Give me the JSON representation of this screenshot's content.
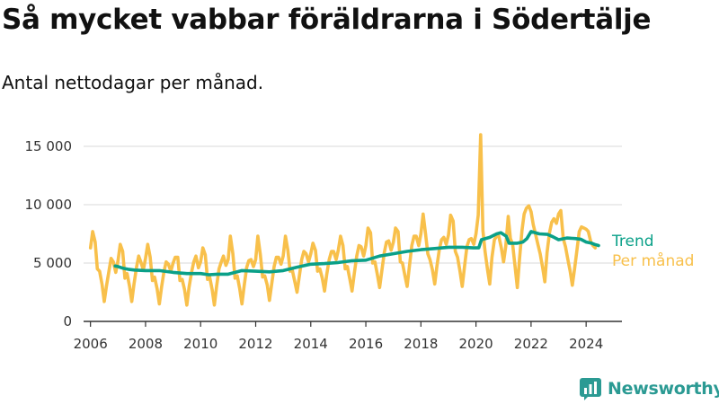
{
  "title": "Så mycket vabbar föräldrarna i Södertälje",
  "subtitle": "Antal nettodagar per månad.",
  "brand": "Newsworthy",
  "colors": {
    "trend": "#0aa088",
    "monthly": "#f8c04b",
    "brand": "#2b9a93",
    "grid": "#d9d9d9",
    "axis": "#333333"
  },
  "chart_data": {
    "type": "line",
    "x_axis_ticks": [
      "2006",
      "2008",
      "2010",
      "2012",
      "2014",
      "2016",
      "2018",
      "2020",
      "2022",
      "2024"
    ],
    "y_axis_ticks": [
      "0",
      "5 000",
      "10 000",
      "15 000"
    ],
    "xlim": [
      2005.75,
      2025.3
    ],
    "ylim": [
      0,
      16000
    ],
    "grid": "horizontal",
    "legend_placement": "right, inline at line ends",
    "series": [
      {
        "name": "Per månad",
        "points": [
          [
            2006.0,
            6300
          ],
          [
            2006.08,
            7700
          ],
          [
            2006.17,
            6800
          ],
          [
            2006.25,
            4500
          ],
          [
            2006.33,
            4300
          ],
          [
            2006.42,
            3200
          ],
          [
            2006.5,
            1700
          ],
          [
            2006.58,
            3000
          ],
          [
            2006.67,
            4300
          ],
          [
            2006.75,
            5400
          ],
          [
            2006.83,
            5100
          ],
          [
            2006.92,
            4200
          ],
          [
            2007.0,
            5200
          ],
          [
            2007.08,
            6600
          ],
          [
            2007.17,
            6000
          ],
          [
            2007.25,
            3700
          ],
          [
            2007.33,
            4100
          ],
          [
            2007.42,
            3000
          ],
          [
            2007.5,
            1700
          ],
          [
            2007.58,
            3200
          ],
          [
            2007.67,
            4600
          ],
          [
            2007.75,
            5600
          ],
          [
            2007.83,
            5100
          ],
          [
            2007.92,
            4400
          ],
          [
            2008.0,
            5400
          ],
          [
            2008.08,
            6600
          ],
          [
            2008.17,
            5500
          ],
          [
            2008.25,
            3500
          ],
          [
            2008.33,
            3800
          ],
          [
            2008.42,
            2800
          ],
          [
            2008.5,
            1500
          ],
          [
            2008.58,
            2900
          ],
          [
            2008.67,
            4300
          ],
          [
            2008.75,
            5100
          ],
          [
            2008.83,
            4900
          ],
          [
            2008.92,
            4300
          ],
          [
            2009.0,
            5000
          ],
          [
            2009.08,
            5500
          ],
          [
            2009.17,
            5500
          ],
          [
            2009.25,
            3500
          ],
          [
            2009.33,
            3600
          ],
          [
            2009.42,
            2700
          ],
          [
            2009.5,
            1400
          ],
          [
            2009.58,
            2900
          ],
          [
            2009.67,
            4200
          ],
          [
            2009.75,
            5100
          ],
          [
            2009.83,
            5600
          ],
          [
            2009.92,
            4600
          ],
          [
            2010.0,
            5100
          ],
          [
            2010.08,
            6300
          ],
          [
            2010.17,
            5700
          ],
          [
            2010.25,
            3600
          ],
          [
            2010.33,
            3800
          ],
          [
            2010.42,
            2700
          ],
          [
            2010.5,
            1400
          ],
          [
            2010.58,
            3000
          ],
          [
            2010.67,
            4500
          ],
          [
            2010.75,
            5100
          ],
          [
            2010.83,
            5600
          ],
          [
            2010.92,
            4800
          ],
          [
            2011.0,
            5300
          ],
          [
            2011.08,
            7300
          ],
          [
            2011.17,
            5800
          ],
          [
            2011.25,
            3700
          ],
          [
            2011.33,
            3900
          ],
          [
            2011.42,
            2800
          ],
          [
            2011.5,
            1500
          ],
          [
            2011.58,
            3000
          ],
          [
            2011.67,
            4600
          ],
          [
            2011.75,
            5200
          ],
          [
            2011.83,
            5300
          ],
          [
            2011.92,
            4700
          ],
          [
            2012.0,
            5300
          ],
          [
            2012.08,
            7300
          ],
          [
            2012.17,
            5700
          ],
          [
            2012.25,
            3800
          ],
          [
            2012.33,
            3900
          ],
          [
            2012.42,
            3100
          ],
          [
            2012.5,
            1800
          ],
          [
            2012.58,
            3200
          ],
          [
            2012.67,
            4700
          ],
          [
            2012.75,
            5500
          ],
          [
            2012.83,
            5500
          ],
          [
            2012.92,
            4900
          ],
          [
            2013.0,
            5600
          ],
          [
            2013.08,
            7300
          ],
          [
            2013.17,
            6100
          ],
          [
            2013.25,
            4300
          ],
          [
            2013.33,
            4400
          ],
          [
            2013.42,
            3400
          ],
          [
            2013.5,
            2500
          ],
          [
            2013.58,
            3800
          ],
          [
            2013.67,
            5300
          ],
          [
            2013.75,
            6000
          ],
          [
            2013.83,
            5800
          ],
          [
            2013.92,
            5100
          ],
          [
            2014.0,
            5800
          ],
          [
            2014.08,
            6700
          ],
          [
            2014.17,
            6100
          ],
          [
            2014.25,
            4300
          ],
          [
            2014.33,
            4500
          ],
          [
            2014.42,
            3700
          ],
          [
            2014.5,
            2600
          ],
          [
            2014.58,
            4000
          ],
          [
            2014.67,
            5300
          ],
          [
            2014.75,
            6000
          ],
          [
            2014.83,
            6000
          ],
          [
            2014.92,
            5300
          ],
          [
            2015.0,
            6100
          ],
          [
            2015.08,
            7300
          ],
          [
            2015.17,
            6500
          ],
          [
            2015.25,
            4500
          ],
          [
            2015.33,
            4700
          ],
          [
            2015.42,
            3600
          ],
          [
            2015.5,
            2600
          ],
          [
            2015.58,
            4100
          ],
          [
            2015.67,
            5600
          ],
          [
            2015.75,
            6500
          ],
          [
            2015.83,
            6400
          ],
          [
            2015.92,
            5600
          ],
          [
            2016.0,
            6500
          ],
          [
            2016.08,
            8000
          ],
          [
            2016.17,
            7600
          ],
          [
            2016.25,
            5000
          ],
          [
            2016.33,
            5100
          ],
          [
            2016.42,
            4000
          ],
          [
            2016.5,
            2900
          ],
          [
            2016.58,
            4300
          ],
          [
            2016.67,
            5900
          ],
          [
            2016.75,
            6800
          ],
          [
            2016.83,
            6900
          ],
          [
            2016.92,
            6100
          ],
          [
            2017.0,
            6800
          ],
          [
            2017.08,
            8000
          ],
          [
            2017.17,
            7700
          ],
          [
            2017.25,
            5100
          ],
          [
            2017.33,
            5000
          ],
          [
            2017.42,
            3900
          ],
          [
            2017.5,
            3000
          ],
          [
            2017.58,
            4700
          ],
          [
            2017.67,
            6500
          ],
          [
            2017.75,
            7300
          ],
          [
            2017.83,
            7300
          ],
          [
            2017.92,
            6500
          ],
          [
            2018.0,
            7500
          ],
          [
            2018.08,
            9200
          ],
          [
            2018.17,
            7500
          ],
          [
            2018.25,
            5800
          ],
          [
            2018.33,
            5300
          ],
          [
            2018.42,
            4400
          ],
          [
            2018.5,
            3200
          ],
          [
            2018.58,
            4700
          ],
          [
            2018.67,
            6200
          ],
          [
            2018.75,
            7000
          ],
          [
            2018.83,
            7200
          ],
          [
            2018.92,
            6600
          ],
          [
            2019.0,
            7400
          ],
          [
            2019.08,
            9100
          ],
          [
            2019.17,
            8600
          ],
          [
            2019.25,
            6000
          ],
          [
            2019.33,
            5500
          ],
          [
            2019.42,
            4300
          ],
          [
            2019.5,
            3000
          ],
          [
            2019.58,
            4600
          ],
          [
            2019.67,
            6400
          ],
          [
            2019.75,
            7000
          ],
          [
            2019.83,
            7100
          ],
          [
            2019.92,
            6600
          ],
          [
            2020.0,
            7500
          ],
          [
            2020.08,
            9100
          ],
          [
            2020.17,
            16000
          ],
          [
            2020.25,
            7800
          ],
          [
            2020.33,
            6000
          ],
          [
            2020.42,
            4400
          ],
          [
            2020.5,
            3200
          ],
          [
            2020.58,
            5500
          ],
          [
            2020.67,
            7000
          ],
          [
            2020.75,
            7300
          ],
          [
            2020.83,
            7300
          ],
          [
            2020.92,
            6300
          ],
          [
            2021.0,
            5100
          ],
          [
            2021.08,
            6400
          ],
          [
            2021.17,
            9000
          ],
          [
            2021.25,
            7100
          ],
          [
            2021.33,
            6600
          ],
          [
            2021.42,
            4700
          ],
          [
            2021.5,
            2900
          ],
          [
            2021.58,
            5300
          ],
          [
            2021.67,
            7800
          ],
          [
            2021.75,
            9200
          ],
          [
            2021.83,
            9700
          ],
          [
            2021.92,
            9900
          ],
          [
            2022.0,
            9400
          ],
          [
            2022.08,
            8300
          ],
          [
            2022.17,
            7400
          ],
          [
            2022.25,
            6600
          ],
          [
            2022.33,
            5800
          ],
          [
            2022.42,
            4600
          ],
          [
            2022.5,
            3400
          ],
          [
            2022.58,
            5900
          ],
          [
            2022.67,
            7600
          ],
          [
            2022.75,
            8500
          ],
          [
            2022.83,
            8800
          ],
          [
            2022.92,
            8400
          ],
          [
            2023.0,
            9200
          ],
          [
            2023.08,
            9500
          ],
          [
            2023.17,
            7100
          ],
          [
            2023.25,
            6400
          ],
          [
            2023.33,
            5400
          ],
          [
            2023.42,
            4300
          ],
          [
            2023.5,
            3100
          ],
          [
            2023.58,
            4500
          ],
          [
            2023.67,
            6200
          ],
          [
            2023.75,
            7700
          ],
          [
            2023.83,
            8100
          ],
          [
            2023.92,
            8000
          ],
          [
            2024.0,
            7900
          ],
          [
            2024.08,
            7700
          ],
          [
            2024.17,
            6800
          ],
          [
            2024.25,
            6500
          ],
          [
            2024.33,
            6300
          ]
        ]
      },
      {
        "name": "Trend",
        "points": [
          [
            2006.9,
            4750
          ],
          [
            2007.0,
            4700
          ],
          [
            2007.2,
            4550
          ],
          [
            2007.4,
            4450
          ],
          [
            2007.6,
            4400
          ],
          [
            2008.0,
            4350
          ],
          [
            2008.5,
            4350
          ],
          [
            2009.0,
            4200
          ],
          [
            2009.5,
            4100
          ],
          [
            2010.0,
            4100
          ],
          [
            2010.3,
            4000
          ],
          [
            2010.6,
            4050
          ],
          [
            2011.0,
            4050
          ],
          [
            2011.5,
            4350
          ],
          [
            2012.0,
            4300
          ],
          [
            2012.5,
            4250
          ],
          [
            2013.0,
            4350
          ],
          [
            2013.5,
            4650
          ],
          [
            2014.0,
            4900
          ],
          [
            2014.5,
            4950
          ],
          [
            2015.0,
            5050
          ],
          [
            2015.5,
            5200
          ],
          [
            2016.0,
            5250
          ],
          [
            2016.5,
            5600
          ],
          [
            2017.0,
            5800
          ],
          [
            2017.5,
            6000
          ],
          [
            2018.0,
            6150
          ],
          [
            2018.5,
            6250
          ],
          [
            2019.0,
            6350
          ],
          [
            2019.5,
            6350
          ],
          [
            2019.9,
            6300
          ],
          [
            2020.1,
            6300
          ],
          [
            2020.2,
            7000
          ],
          [
            2020.5,
            7200
          ],
          [
            2020.75,
            7500
          ],
          [
            2020.9,
            7600
          ],
          [
            2021.1,
            7300
          ],
          [
            2021.2,
            6700
          ],
          [
            2021.5,
            6700
          ],
          [
            2021.7,
            6800
          ],
          [
            2021.85,
            7100
          ],
          [
            2022.0,
            7700
          ],
          [
            2022.3,
            7500
          ],
          [
            2022.6,
            7450
          ],
          [
            2022.8,
            7250
          ],
          [
            2023.0,
            7000
          ],
          [
            2023.3,
            7150
          ],
          [
            2023.6,
            7100
          ],
          [
            2023.8,
            7050
          ],
          [
            2024.0,
            6800
          ],
          [
            2024.2,
            6700
          ],
          [
            2024.3,
            6600
          ],
          [
            2024.45,
            6500
          ]
        ]
      }
    ]
  }
}
